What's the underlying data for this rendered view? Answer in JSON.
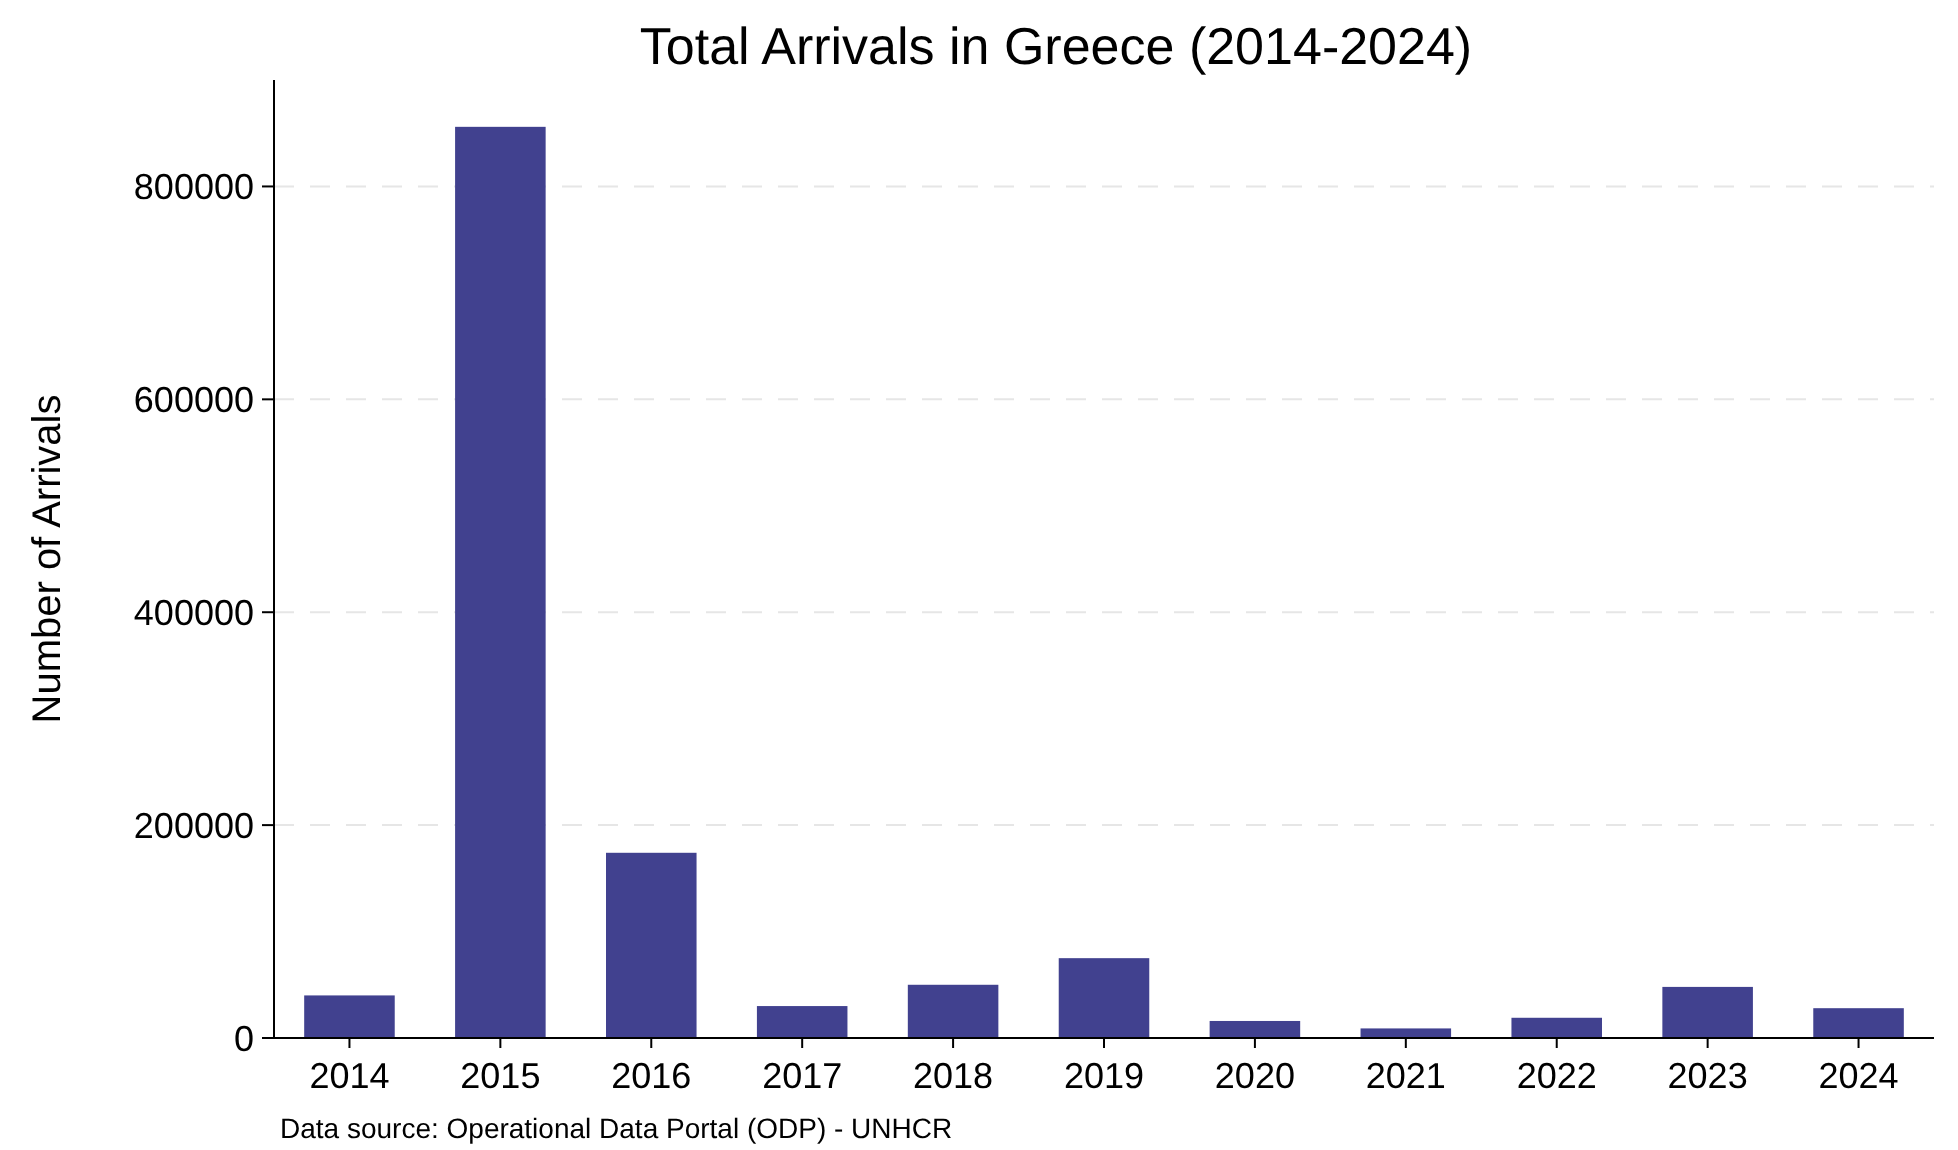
{
  "chart_data": {
    "type": "bar",
    "title": "Total Arrivals in Greece (2014-2024)",
    "ylabel": "Number of Arrivals",
    "categories": [
      "2014",
      "2015",
      "2016",
      "2017",
      "2018",
      "2019",
      "2020",
      "2021",
      "2022",
      "2023",
      "2024"
    ],
    "values": [
      40000,
      856000,
      174000,
      30000,
      50000,
      75000,
      16000,
      9000,
      19000,
      48000,
      28000
    ],
    "color": "#41418f",
    "ylim": [
      0,
      900000
    ],
    "yticks": [
      0,
      200000,
      400000,
      600000,
      800000
    ],
    "grid": "y",
    "annotations": [
      "Data source: Operational Data Portal (ODP) - UNHCR"
    ]
  }
}
